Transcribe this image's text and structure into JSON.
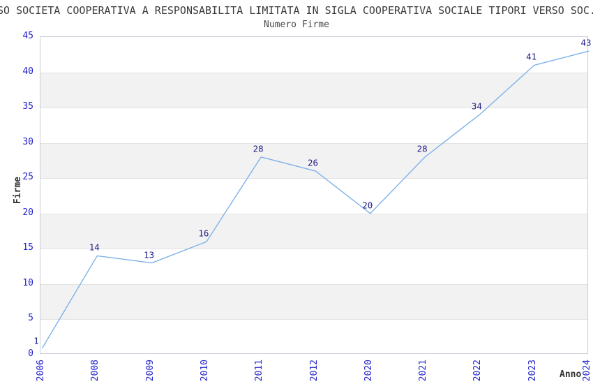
{
  "chart_data": {
    "type": "line",
    "title": "SO SOCIETA COOPERATIVA A RESPONSABILITA LIMITATA IN SIGLA COOPERATIVA SOCIALE TIPORI VERSO SOC.",
    "subtitle": "Numero Firme",
    "xlabel": "Anno",
    "ylabel": "Firme",
    "categories": [
      "2006",
      "2008",
      "2009",
      "2010",
      "2011",
      "2012",
      "2020",
      "2021",
      "2022",
      "2023",
      "2024"
    ],
    "values": [
      1,
      14,
      13,
      16,
      28,
      26,
      20,
      28,
      34,
      41,
      43
    ],
    "ylim": [
      0,
      45
    ],
    "yticks": [
      0,
      5,
      10,
      15,
      20,
      25,
      30,
      35,
      40,
      45
    ],
    "grid": "horizontal-bands-alternating",
    "legend": "none",
    "colors": {
      "line": "#7fb2e8",
      "tick_label": "#2323cd",
      "value_label": "#202087",
      "band": "#f2f2f2",
      "gridline": "#e3e3e3",
      "plot_border": "#c8cdd6",
      "title_text": "#3b3b3b"
    }
  }
}
